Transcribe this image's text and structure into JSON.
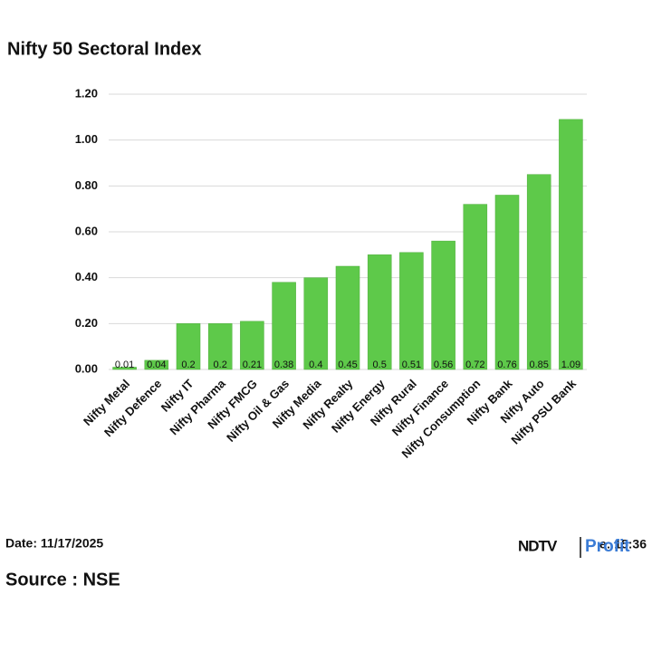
{
  "chart_data": {
    "type": "bar",
    "title": "Nifty 50 Sectoral Index",
    "categories": [
      "Nifty Metal",
      "Nifty Defence",
      "Nifty IT",
      "Nifty Pharma",
      "Nifty FMCG",
      "Nifty Oil & Gas",
      "Nifty Media",
      "Nifty Realty",
      "Nifty Energy",
      "Nifty Rural",
      "Nifty Finance",
      "Nifty Consumption",
      "Nifty Bank",
      "Nifty Auto",
      "Nifty PSU Bank"
    ],
    "values": [
      0.01,
      0.04,
      0.2,
      0.2,
      0.21,
      0.38,
      0.4,
      0.45,
      0.5,
      0.51,
      0.56,
      0.72,
      0.76,
      0.85,
      1.09
    ],
    "color": "#5ec94a",
    "ylim": [
      0,
      1.2
    ],
    "yticks": [
      {
        "value": 0,
        "label": "0.00"
      },
      {
        "value": 0.2,
        "label": "0.20"
      },
      {
        "value": 0.4,
        "label": "0.40"
      },
      {
        "value": 0.6,
        "label": "0.60"
      },
      {
        "value": 0.8,
        "label": "0.80"
      },
      {
        "value": 1.0,
        "label": "1.00"
      },
      {
        "value": 1.2,
        "label": "1.20"
      }
    ],
    "grid": true
  },
  "footer": {
    "date": "Date: 11/17/2025",
    "time": "Time: 15:36",
    "source": "Source : NSE",
    "logo_left": "NDTV",
    "logo_right": "Profit"
  }
}
